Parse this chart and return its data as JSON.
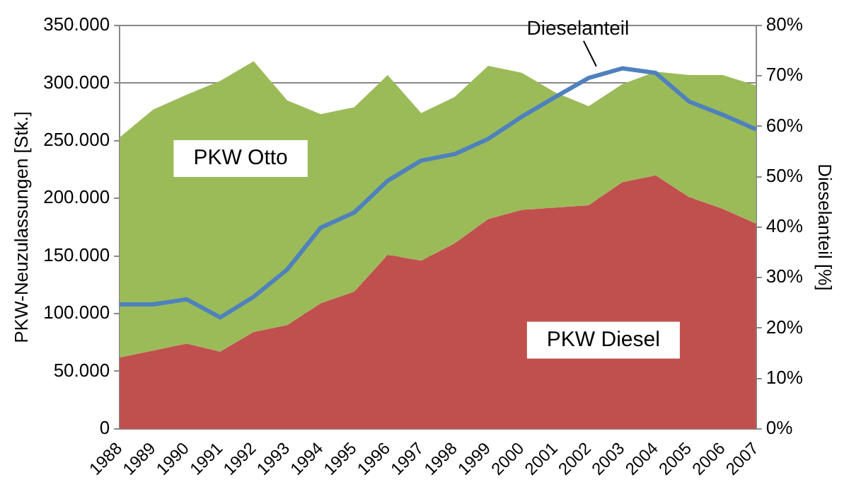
{
  "chart_data": {
    "type": "area",
    "stacked": true,
    "categories": [
      "1988",
      "1989",
      "1990",
      "1991",
      "1992",
      "1993",
      "1994",
      "1995",
      "1996",
      "1997",
      "1998",
      "1999",
      "2000",
      "2001",
      "2002",
      "2003",
      "2004",
      "2005",
      "2006",
      "2007"
    ],
    "series": [
      {
        "name": "PKW Diesel",
        "color": "#c0504d",
        "values": [
          62000,
          68000,
          74000,
          67000,
          84000,
          90000,
          109000,
          119000,
          151000,
          146000,
          161000,
          182000,
          190000,
          192000,
          194000,
          214000,
          220000,
          201000,
          191000,
          178000
        ]
      },
      {
        "name": "PKW Otto",
        "color": "#9bbb59",
        "values": [
          191000,
          209000,
          216000,
          235000,
          235000,
          195000,
          164000,
          160000,
          156000,
          128000,
          127000,
          133000,
          119000,
          100000,
          86000,
          85000,
          90000,
          106000,
          116000,
          120000
        ]
      },
      {
        "name": "Dieselanteil",
        "type": "line",
        "axis": "y2",
        "color": "#4f81bd",
        "values": [
          24.7,
          24.7,
          25.7,
          22.1,
          26.2,
          31.6,
          39.9,
          42.9,
          49.2,
          53.2,
          54.5,
          57.5,
          61.9,
          65.8,
          69.6,
          71.5,
          70.6,
          64.9,
          62.3,
          59.4
        ]
      }
    ],
    "ylabel": "PKW-Neuzulassungen [Stk.]",
    "y2label": "Dieselanteil [%]",
    "ylim": [
      0,
      350000
    ],
    "yticks": [
      {
        "value": 0,
        "label": "0"
      },
      {
        "value": 50000,
        "label": "50.000"
      },
      {
        "value": 100000,
        "label": "100.000"
      },
      {
        "value": 150000,
        "label": "150.000"
      },
      {
        "value": 200000,
        "label": "200.000"
      },
      {
        "value": 250000,
        "label": "250.000"
      },
      {
        "value": 300000,
        "label": "300.000"
      },
      {
        "value": 350000,
        "label": "350.000"
      }
    ],
    "y2lim": [
      0,
      80
    ],
    "y2ticks": [
      {
        "value": 0,
        "label": "0%"
      },
      {
        "value": 10,
        "label": "10%"
      },
      {
        "value": 20,
        "label": "20%"
      },
      {
        "value": 30,
        "label": "30%"
      },
      {
        "value": 40,
        "label": "40%"
      },
      {
        "value": 50,
        "label": "50%"
      },
      {
        "value": 60,
        "label": "60%"
      },
      {
        "value": 70,
        "label": "70%"
      },
      {
        "value": 80,
        "label": "80%"
      }
    ],
    "grid": "y",
    "legend": false,
    "marker": "none",
    "line_style": "solid"
  }
}
